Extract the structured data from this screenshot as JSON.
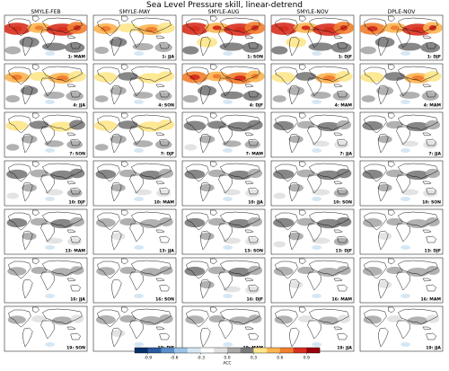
{
  "title": "Sea Level Pressure skill, linear-detrend",
  "columns": [
    "SMYLE-FEB",
    "SMYLE-MAY",
    "SMYLE-AUG",
    "SMYLE-NOV",
    "DPLE-NOV"
  ],
  "colorbar": {
    "ticks": [
      "-0.9",
      "-0.6",
      "-0.3",
      "0.0",
      "0.3",
      "0.6",
      "0.9"
    ],
    "label": "ACC",
    "colors": [
      "#08306b",
      "#2a5aa0",
      "#5b8fc9",
      "#9cc3e4",
      "#d6e7f4",
      "#ffffff",
      "#e0e0e0",
      "#a9a9a9",
      "#7a7a7a",
      "#fde68a",
      "#fbb450",
      "#f08030",
      "#d7301f",
      "#99000d"
    ]
  },
  "chart_data": {
    "type": "heatmap",
    "title": "Sea Level Pressure skill, linear-detrend",
    "colorbar_label": "ACC",
    "colorbar_ticks": [
      -0.9,
      -0.6,
      -0.3,
      0.0,
      0.3,
      0.6,
      0.9
    ],
    "columns": [
      "SMYLE-FEB",
      "SMYLE-MAY",
      "SMYLE-AUG",
      "SMYLE-NOV",
      "DPLE-NOV"
    ],
    "panel_labels": [
      [
        "1: MAM",
        "1: JJA",
        "1: SON",
        "1: DJF",
        "1: DJF"
      ],
      [
        "4: JJA",
        "4: SON",
        "4: DJF",
        "4: MAM",
        "4: MAM"
      ],
      [
        "7: SON",
        "7: DJF",
        "7: MAM",
        "7: JJA",
        "7: JJA"
      ],
      [
        "10: DJF",
        "10: MAM",
        "10: JJA",
        "10: SON",
        "10: SON"
      ],
      [
        "13: MAM",
        "13: JJA",
        "13: SON",
        "13: DJF",
        "13: DJF"
      ],
      [
        "16: JJA",
        "16: SON",
        "16: DJF",
        "16: MAM",
        "16: MAM"
      ],
      [
        "19: SON",
        "19: DJF",
        "19: MAM",
        "19: JJA",
        "19: JJA"
      ]
    ],
    "panel_skill": [
      [
        0.85,
        0.6,
        0.9,
        0.9,
        0.8
      ],
      [
        0.6,
        0.5,
        0.75,
        0.55,
        0.55
      ],
      [
        0.45,
        0.5,
        0.4,
        0.3,
        0.3
      ],
      [
        0.35,
        0.3,
        0.3,
        0.35,
        0.3
      ],
      [
        0.3,
        0.25,
        0.3,
        0.35,
        0.25
      ],
      [
        0.2,
        0.2,
        0.3,
        0.25,
        0.25
      ],
      [
        0.15,
        0.25,
        0.2,
        0.15,
        0.15
      ]
    ]
  }
}
